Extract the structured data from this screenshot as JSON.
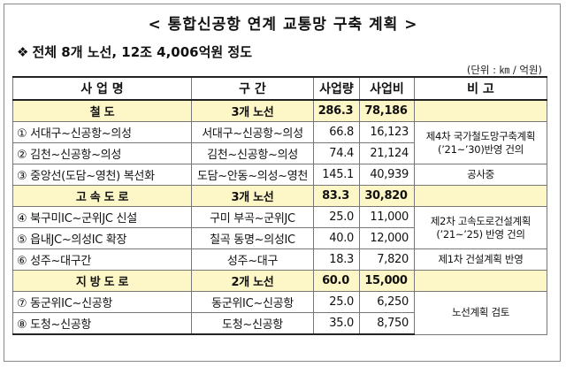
{
  "title": "< 통합신공항 연계 교통망 구축 계획 >",
  "summary": {
    "bullet": "❖",
    "text": "전체 8개 노선, 12조 4,006억원 정도"
  },
  "unit": "(단위 : ㎞ / 억원)",
  "headers": [
    "사 업 명",
    "구 간",
    "사업량",
    "사업비",
    "비 고"
  ],
  "groups": {
    "rail": {
      "name": "철 도",
      "section": "3개 노선",
      "length": "286.3",
      "cost": "78,186"
    },
    "highway": {
      "name": "고 속 도 로",
      "section": "3개 노선",
      "length": "83.3",
      "cost": "30,820"
    },
    "local": {
      "name": "지 방 도 로",
      "section": "2개 노선",
      "length": "60.0",
      "cost": "15,000"
    }
  },
  "rows": [
    {
      "name": "① 서대구~신공항~의성",
      "section": "서대구~신공항~의성",
      "length": "66.8",
      "cost": "16,123"
    },
    {
      "name": "② 김천~신공항~의성",
      "section": "김천~신공항~의성",
      "length": "74.4",
      "cost": "21,124"
    },
    {
      "name": "③ 중앙선(도담~영천) 복선화",
      "section": "도담~안동~의성~영천",
      "length": "145.1",
      "cost": "40,939"
    },
    {
      "name": "④ 북구미IC~군위JC 신설",
      "section": "구미 부곡~군위JC",
      "length": "25.0",
      "cost": "11,000"
    },
    {
      "name": "⑤ 읍내JC~의성IC 확장",
      "section": "칠곡 동명~의성IC",
      "length": "40.0",
      "cost": "12,000"
    },
    {
      "name": "⑥ 성주~대구간",
      "section": "성주~대구",
      "length": "18.3",
      "cost": "7,820"
    },
    {
      "name": "⑦ 동군위IC~신공항",
      "section": "동군위IC~신공항",
      "length": "25.0",
      "cost": "6,250"
    },
    {
      "name": "⑧ 도청~신공항",
      "section": "도청~신공항",
      "length": "35.0",
      "cost": "8,750"
    }
  ],
  "notes": {
    "rail_plan": "제4차 국가철도망구축계획 (’21~’30)반영 건의",
    "rail_construction": "공사중",
    "highway_plan": "제2차 고속도로건설계획 (’21~’25) 반영 건의",
    "highway_design": "제1차 건설계획 반영",
    "local_review": "노선계획 검토"
  }
}
